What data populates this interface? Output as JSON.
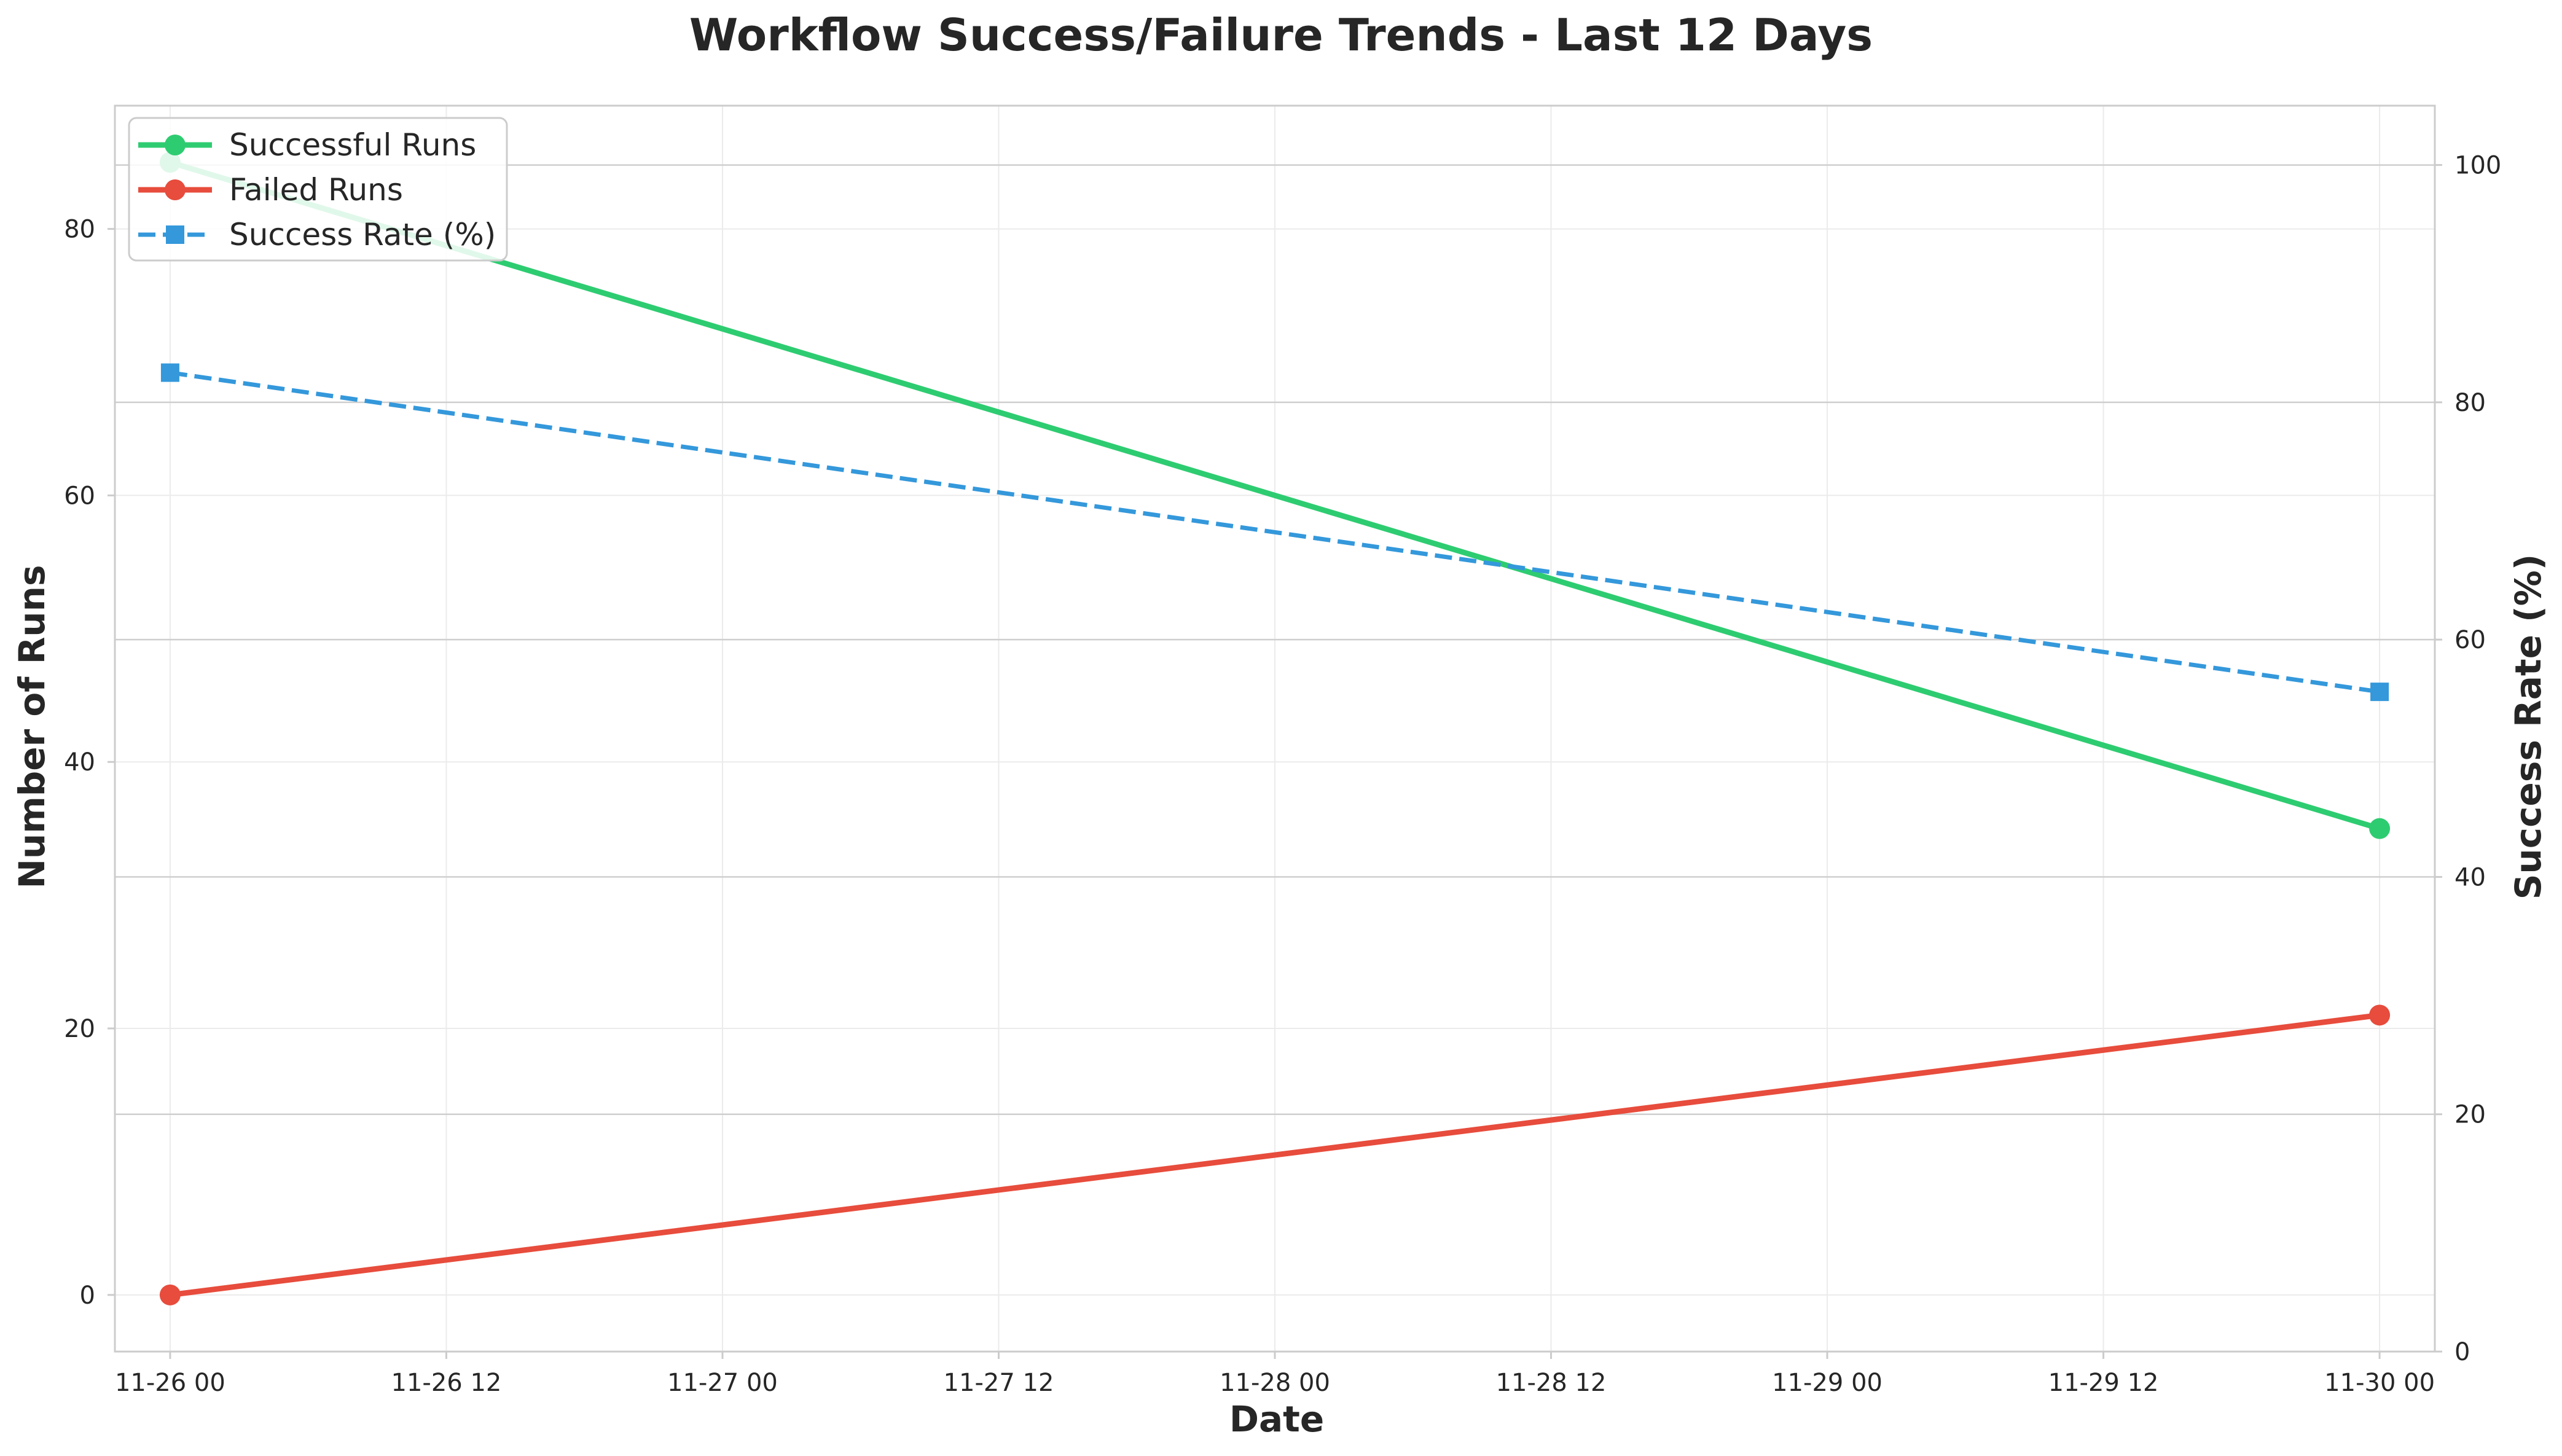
{
  "chart_data": {
    "type": "line",
    "title": "Workflow Success/Failure Trends - Last 12 Days",
    "xlabel": "Date",
    "ylabel": "Number of Runs",
    "y2label": "Success Rate (%)",
    "x": [
      "2024-11-26 00:00",
      "2024-11-30 00:00"
    ],
    "xlim": [
      "2024-11-25 21:36",
      "2024-11-30 02:24"
    ],
    "x_ticks": [
      "2024-11-26 00:00",
      "2024-11-26 12:00",
      "2024-11-27 00:00",
      "2024-11-27 12:00",
      "2024-11-28 00:00",
      "2024-11-28 12:00",
      "2024-11-29 00:00",
      "2024-11-29 12:00",
      "2024-11-30 00:00"
    ],
    "x_tick_labels": [
      "11-26 00",
      "11-26 12",
      "11-27 00",
      "11-27 12",
      "11-28 00",
      "11-28 12",
      "11-29 00",
      "11-29 12",
      "11-30 00"
    ],
    "ylim": [
      -4.25,
      89.25
    ],
    "y_ticks": [
      0,
      20,
      40,
      60,
      80
    ],
    "y2lim": [
      0,
      105
    ],
    "y2_ticks": [
      0,
      20,
      40,
      60,
      80,
      100
    ],
    "series": [
      {
        "name": "Successful Runs",
        "axis": "left",
        "values": [
          85,
          35
        ],
        "color": "#2ecc71",
        "marker": "circle",
        "linestyle": "solid"
      },
      {
        "name": "Failed Runs",
        "axis": "left",
        "values": [
          0,
          21
        ],
        "color": "#e74c3c",
        "marker": "circle",
        "linestyle": "solid"
      },
      {
        "name": "Success Rate (%)",
        "axis": "right",
        "values": [
          82.5,
          55.6
        ],
        "color": "#3498db",
        "marker": "square",
        "linestyle": "dashed"
      }
    ],
    "grid": true,
    "legend_position": "top-left"
  }
}
